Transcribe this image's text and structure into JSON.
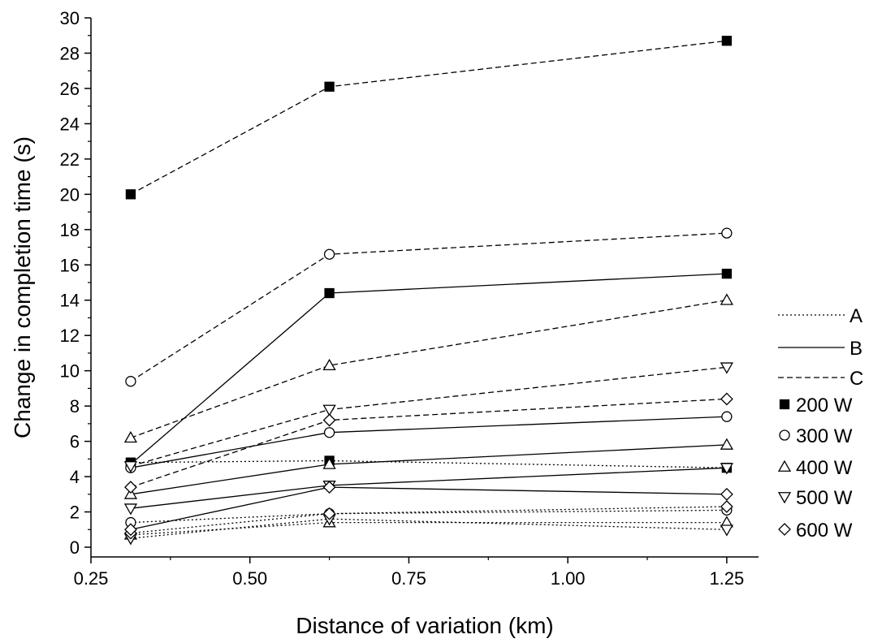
{
  "chart_data": {
    "type": "line",
    "xlabel": "Distance of variation (km)",
    "ylabel": "Change in completion time (s)",
    "xlim": [
      0.25,
      1.3
    ],
    "ylim": [
      0,
      30
    ],
    "xticks": [
      "0.25",
      "0.50",
      "0.75",
      "1.00",
      "1.25"
    ],
    "xtick_values": [
      0.25,
      0.5,
      0.75,
      1.0,
      1.25
    ],
    "yticks": [
      "0",
      "2",
      "4",
      "6",
      "8",
      "10",
      "12",
      "14",
      "16",
      "18",
      "20",
      "22",
      "24",
      "26",
      "28",
      "30"
    ],
    "ytick_values": [
      0,
      2,
      4,
      6,
      8,
      10,
      12,
      14,
      16,
      18,
      20,
      22,
      24,
      26,
      28,
      30
    ],
    "x": [
      0.3125,
      0.625,
      1.25
    ],
    "grid": false,
    "legend_position": "right",
    "line_styles": [
      {
        "key": "A",
        "label": "A",
        "dash": "dotted"
      },
      {
        "key": "B",
        "label": "B",
        "dash": "solid"
      },
      {
        "key": "C",
        "label": "C",
        "dash": "dashed"
      }
    ],
    "markers": [
      {
        "key": "200",
        "label": "200 W",
        "shape": "square-filled"
      },
      {
        "key": "300",
        "label": "300 W",
        "shape": "circle"
      },
      {
        "key": "400",
        "label": "400 W",
        "shape": "triangle-up"
      },
      {
        "key": "500",
        "label": "500 W",
        "shape": "triangle-down"
      },
      {
        "key": "600",
        "label": "600 W",
        "shape": "diamond"
      }
    ],
    "series": [
      {
        "style": "A",
        "marker": "200",
        "values": [
          4.8,
          4.9,
          4.5
        ]
      },
      {
        "style": "A",
        "marker": "300",
        "values": [
          1.4,
          1.9,
          2.1
        ]
      },
      {
        "style": "A",
        "marker": "400",
        "values": [
          0.7,
          1.4,
          1.4
        ]
      },
      {
        "style": "A",
        "marker": "500",
        "values": [
          0.5,
          1.6,
          1.0
        ]
      },
      {
        "style": "A",
        "marker": "600",
        "values": [
          0.8,
          1.9,
          2.3
        ]
      },
      {
        "style": "B",
        "marker": "200",
        "values": [
          4.7,
          14.4,
          15.5
        ]
      },
      {
        "style": "B",
        "marker": "300",
        "values": [
          4.5,
          6.5,
          7.4
        ]
      },
      {
        "style": "B",
        "marker": "400",
        "values": [
          3.0,
          4.7,
          5.8
        ]
      },
      {
        "style": "B",
        "marker": "500",
        "values": [
          2.2,
          3.5,
          4.5
        ]
      },
      {
        "style": "B",
        "marker": "600",
        "values": [
          1.0,
          3.4,
          3.0
        ]
      },
      {
        "style": "C",
        "marker": "200",
        "values": [
          20.0,
          26.1,
          28.7
        ]
      },
      {
        "style": "C",
        "marker": "300",
        "values": [
          9.4,
          16.6,
          17.8
        ]
      },
      {
        "style": "C",
        "marker": "400",
        "values": [
          6.2,
          10.3,
          14.0
        ]
      },
      {
        "style": "C",
        "marker": "500",
        "values": [
          4.6,
          7.8,
          10.2
        ]
      },
      {
        "style": "C",
        "marker": "600",
        "values": [
          3.4,
          7.2,
          8.4
        ]
      }
    ]
  }
}
